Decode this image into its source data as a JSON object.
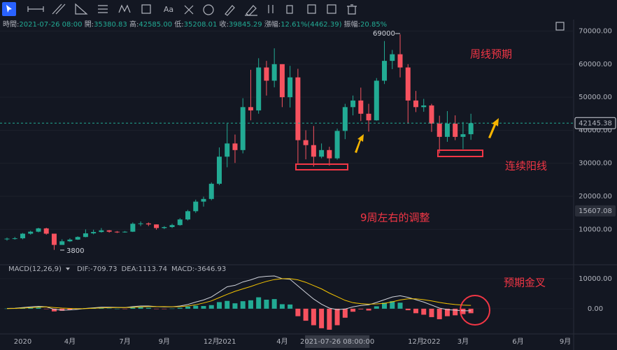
{
  "toolbar_text": "Aa",
  "info": [
    [
      "時間:",
      "2021-07-26 08:00"
    ],
    [
      "開:",
      "35380.83"
    ],
    [
      "高:",
      "42585.00"
    ],
    [
      "低:",
      "35208.01"
    ],
    [
      "收:",
      "39845.29"
    ],
    [
      "漲幅:",
      "12.61%(4462.39)"
    ],
    [
      "振幅:",
      "20.85%"
    ]
  ],
  "annotations": {
    "high": "69000",
    "low": "3800",
    "weekly": "周线预期",
    "consecutive": "连续阳线",
    "adjust": "9周左右的调整",
    "cross": "预期金叉"
  },
  "crosshair": "2021-07-26 08:00:00",
  "chart_data": [
    {
      "type": "candlestick",
      "up_color": "#22ab94",
      "down_color": "#f7525f",
      "categories": [
        null,
        null,
        "2020",
        null,
        null,
        null,
        null,
        null,
        "4月",
        null,
        null,
        null,
        null,
        null,
        null,
        "7月",
        null,
        null,
        null,
        null,
        "9月",
        null,
        null,
        null,
        null,
        null,
        "12月",
        null,
        "2021",
        null,
        null,
        null,
        null,
        null,
        null,
        "4月",
        null,
        null,
        null,
        null,
        null,
        null,
        "2021-07-26 08:00:00",
        null,
        null,
        null,
        null,
        null,
        null,
        null,
        null,
        null,
        "12月",
        null,
        "2022",
        null,
        null,
        null,
        "3月",
        null,
        null,
        null,
        null,
        null,
        null,
        "6月",
        null,
        null,
        null,
        null,
        null,
        "9月"
      ],
      "open": [
        7000,
        7200,
        7300,
        8700,
        9300,
        10300,
        8700,
        5300,
        6400,
        6900,
        7700,
        8800,
        9200,
        9700,
        9300,
        9200,
        9300,
        11700,
        11800,
        11500,
        10400,
        10700,
        11300,
        13000,
        15500,
        18400,
        19200,
        23800,
        32000,
        36000,
        34000,
        47000,
        46000,
        59000,
        55000,
        60000,
        50000,
        56000,
        37000,
        35500,
        32000,
        34000,
        31500,
        39800,
        47000,
        49000,
        45000,
        43000,
        55000,
        61000,
        63000,
        59000,
        49000,
        47000,
        47500,
        42000,
        38000,
        42000,
        38000,
        38800,
        null,
        null,
        null,
        null,
        null,
        null,
        null,
        null,
        null,
        null,
        null,
        null
      ],
      "high": [
        7500,
        7700,
        8900,
        9600,
        10500,
        10500,
        8000,
        7000,
        7300,
        7900,
        10000,
        9900,
        10400,
        9800,
        9500,
        9500,
        12100,
        12400,
        12100,
        11500,
        11000,
        11700,
        13400,
        15900,
        19000,
        19900,
        24200,
        34800,
        42000,
        38700,
        49700,
        58300,
        61800,
        61000,
        64800,
        60000,
        59500,
        58600,
        40000,
        41300,
        36000,
        35000,
        40500,
        48000,
        50500,
        52900,
        48000,
        55800,
        67000,
        64300,
        69000,
        60000,
        51900,
        49500,
        48000,
        44400,
        45800,
        44500,
        42500,
        45000,
        null,
        null,
        null,
        null,
        null,
        null,
        null,
        null,
        null,
        null,
        null,
        null
      ],
      "low": [
        6600,
        6900,
        7000,
        8400,
        9100,
        8400,
        3800,
        5700,
        6200,
        6800,
        7600,
        8500,
        9000,
        9000,
        8900,
        9000,
        9200,
        11000,
        11000,
        9900,
        10100,
        10400,
        11100,
        12700,
        15000,
        16900,
        18800,
        23400,
        28800,
        30100,
        33000,
        43000,
        45000,
        50500,
        53000,
        47000,
        46900,
        30000,
        31200,
        29000,
        31500,
        29300,
        31100,
        37300,
        44500,
        42800,
        39600,
        42900,
        54000,
        58500,
        56000,
        42000,
        45500,
        45600,
        39500,
        33000,
        36500,
        37000,
        34300,
        37100,
        null,
        null,
        null,
        null,
        null,
        null,
        null,
        null,
        null,
        null,
        null,
        null
      ],
      "close": [
        7200,
        7300,
        8700,
        9300,
        10300,
        8700,
        5300,
        6400,
        6900,
        7700,
        8800,
        9200,
        9700,
        9300,
        9200,
        9300,
        11700,
        11800,
        11500,
        10400,
        10700,
        11300,
        13000,
        15500,
        18400,
        19200,
        23800,
        32000,
        36000,
        34000,
        47000,
        46000,
        59000,
        55000,
        60000,
        50000,
        56000,
        37000,
        35500,
        32000,
        34000,
        31500,
        39800,
        47000,
        49000,
        45000,
        43000,
        55000,
        61000,
        63000,
        59000,
        49000,
        47000,
        47500,
        42000,
        38000,
        42000,
        38000,
        38800,
        42145,
        null,
        null,
        null,
        null,
        null,
        null,
        null,
        null,
        null,
        null,
        null,
        null
      ],
      "ylim": [
        -500,
        73500
      ],
      "yticks": [
        {
          "value": 10000,
          "label": "10000.00"
        },
        {
          "value": 20000,
          "label": "20000.00"
        },
        {
          "value": 30000,
          "label": "30000.00"
        },
        {
          "value": 40000,
          "label": "40000.00"
        },
        {
          "value": 50000,
          "label": "50000.00"
        },
        {
          "value": 60000,
          "label": "60000.00"
        },
        {
          "value": 70000,
          "label": "70000.00"
        }
      ],
      "last_price": {
        "value": 42145.38,
        "label": "42145.38"
      },
      "level": {
        "value": 15607.08,
        "label": "15607.08"
      }
    },
    {
      "type": "macd",
      "legend": [
        "MACD(12,26,9)",
        "DIF:-709.73",
        "DEA:1113.74",
        "MACD:-3646.93"
      ],
      "legend_colors": [
        "#b2b5be",
        "#d1d4dc",
        "#f5c400",
        "#f7525f"
      ],
      "hist": [
        50,
        80,
        300,
        350,
        400,
        -100,
        -900,
        -700,
        -400,
        -100,
        200,
        250,
        300,
        100,
        0,
        -50,
        500,
        500,
        300,
        -100,
        -100,
        50,
        300,
        700,
        1000,
        900,
        1200,
        2200,
        2600,
        1800,
        2500,
        2800,
        3800,
        3000,
        3200,
        1500,
        1400,
        -2500,
        -4000,
        -5500,
        -6500,
        -7000,
        -5500,
        -3000,
        -1000,
        -200,
        -600,
        800,
        2000,
        2500,
        2000,
        -500,
        -1500,
        -2000,
        -2800,
        -3500,
        -2500,
        -2200,
        -1800,
        -1500,
        null,
        null,
        null,
        null,
        null,
        null,
        null,
        null,
        null,
        null,
        null,
        null
      ],
      "dif": [
        100,
        150,
        400,
        600,
        800,
        600,
        -200,
        -500,
        -400,
        -200,
        100,
        300,
        500,
        500,
        450,
        400,
        700,
        900,
        900,
        700,
        600,
        650,
        900,
        1400,
        2200,
        2900,
        3900,
        5600,
        7300,
        7800,
        8900,
        9600,
        10500,
        10800,
        10900,
        10000,
        9800,
        7600,
        5400,
        3200,
        1500,
        200,
        -300,
        -100,
        600,
        1100,
        1300,
        2100,
        3000,
        3900,
        4300,
        3800,
        3000,
        2200,
        1200,
        200,
        -300,
        -500,
        -650,
        -710,
        null,
        null,
        null,
        null,
        null,
        null,
        null,
        null,
        null,
        null,
        null,
        null
      ],
      "dea": [
        50,
        100,
        200,
        350,
        500,
        600,
        400,
        200,
        100,
        0,
        50,
        150,
        250,
        350,
        400,
        400,
        450,
        600,
        700,
        700,
        700,
        650,
        700,
        900,
        1300,
        1900,
        2600,
        3700,
        4800,
        5800,
        6600,
        7400,
        8300,
        9100,
        9700,
        10000,
        10000,
        9600,
        8800,
        7700,
        6600,
        5200,
        4000,
        2800,
        2000,
        1700,
        1500,
        1600,
        1800,
        2300,
        2900,
        3300,
        3300,
        3000,
        2600,
        2100,
        1700,
        1400,
        1200,
        1114,
        null,
        null,
        null,
        null,
        null,
        null,
        null,
        null,
        null,
        null,
        null,
        null
      ],
      "colors": {
        "up": "#22ab94",
        "down": "#f7525f",
        "dif": "#d1d4dc",
        "dea": "#f5c400"
      },
      "ylim": [
        -8400,
        14400
      ],
      "yticks": [
        {
          "value": 0,
          "label": "0.00"
        },
        {
          "value": 10000,
          "label": "10000.00"
        }
      ]
    }
  ]
}
